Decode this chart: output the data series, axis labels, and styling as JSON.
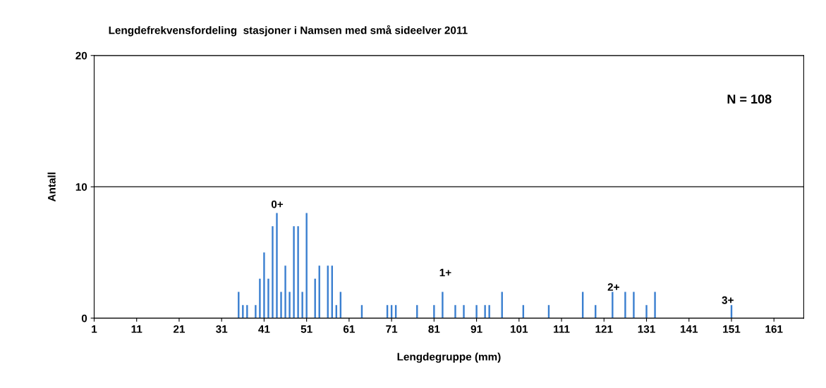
{
  "chart_data": {
    "type": "bar",
    "title": "Lengdefrekvensfordeling  stasjoner i Namsen med små sideelver 2011",
    "xlabel": "Lengdegruppe (mm)",
    "ylabel": "Antall",
    "x": [
      35,
      36,
      37,
      39,
      40,
      41,
      42,
      43,
      44,
      45,
      46,
      47,
      48,
      49,
      50,
      51,
      53,
      54,
      56,
      57,
      58,
      59,
      64,
      70,
      71,
      72,
      77,
      81,
      83,
      86,
      88,
      91,
      93,
      94,
      97,
      102,
      108,
      116,
      119,
      123,
      126,
      128,
      131,
      133,
      151
    ],
    "values": [
      2,
      1,
      1,
      1,
      3,
      5,
      3,
      7,
      8,
      2,
      4,
      2,
      7,
      7,
      2,
      8,
      3,
      4,
      4,
      4,
      1,
      2,
      1,
      1,
      1,
      1,
      1,
      1,
      2,
      1,
      1,
      1,
      1,
      1,
      2,
      1,
      1,
      2,
      1,
      2,
      2,
      2,
      1,
      2,
      1
    ],
    "color": "#3a7fd0",
    "xlim": [
      1,
      168
    ],
    "xticks": [
      1,
      11,
      21,
      31,
      41,
      51,
      61,
      71,
      81,
      91,
      101,
      111,
      121,
      131,
      141,
      151,
      161
    ],
    "ylim": [
      0,
      20
    ],
    "yticks": [
      0,
      10,
      20
    ],
    "grid": "y",
    "annotations": [
      "0+",
      "1+",
      "2+",
      "3+",
      "N = 108"
    ]
  }
}
